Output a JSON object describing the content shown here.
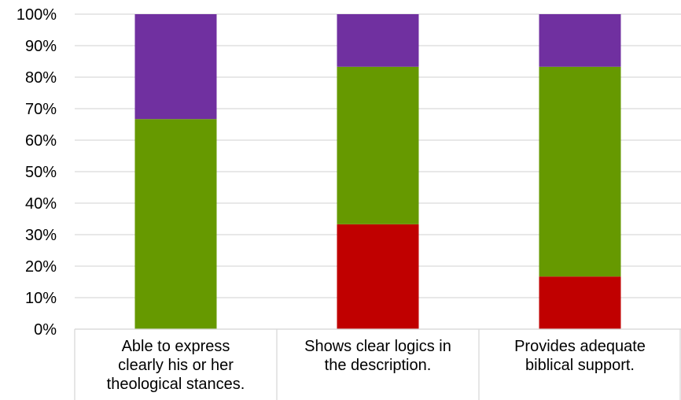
{
  "chart_data": {
    "type": "bar",
    "stacked": true,
    "percent": true,
    "categories": [
      "Able to express clearly his or her theological stances.",
      "Shows clear logics in the description.",
      "Provides adequate biblical support."
    ],
    "category_lines": [
      [
        "Able to express",
        "clearly his or her",
        "theological stances."
      ],
      [
        "Shows clear logics in",
        "the description."
      ],
      [
        "Provides adequate",
        "biblical support."
      ]
    ],
    "series": [
      {
        "color": "#c00000",
        "values": [
          0,
          33.3,
          16.7
        ]
      },
      {
        "color": "#669900",
        "values": [
          66.7,
          50.0,
          66.6
        ]
      },
      {
        "color": "#7030a0",
        "values": [
          33.3,
          16.7,
          16.7
        ]
      }
    ],
    "yticks": [
      "0%",
      "10%",
      "20%",
      "30%",
      "40%",
      "50%",
      "60%",
      "70%",
      "80%",
      "90%",
      "100%"
    ],
    "ylim": [
      0,
      100
    ],
    "grid": true,
    "legend": "none"
  }
}
